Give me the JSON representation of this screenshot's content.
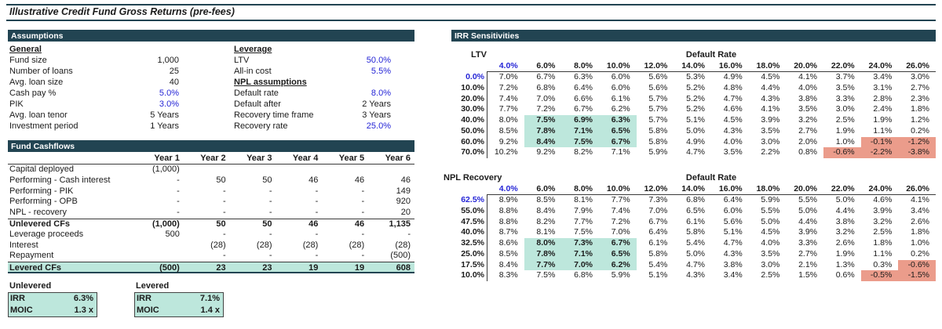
{
  "title": "Illustrative Credit Fund Gross Returns (pre-fees)",
  "colors": {
    "header_bar": "#224452",
    "input_blue": "#2525d6",
    "highlight_teal": "#bde7dc",
    "highlight_salmon": "#eb9c8b"
  },
  "assumptions": {
    "header": "Assumptions",
    "columns": [
      {
        "items": [
          {
            "type": "heading",
            "text": "General"
          },
          {
            "type": "row",
            "label": "Fund size",
            "value": "1,000",
            "input": false
          },
          {
            "type": "row",
            "label": "Number of loans",
            "value": "25",
            "input": false
          },
          {
            "type": "row",
            "label": "Avg. loan size",
            "value": "40",
            "input": false
          },
          {
            "type": "row",
            "label": "Cash pay %",
            "value": "5.0%",
            "input": true
          },
          {
            "type": "row",
            "label": "PIK",
            "value": "3.0%",
            "input": true
          },
          {
            "type": "row",
            "label": "Avg. loan tenor",
            "value": "5 Years",
            "input": false
          },
          {
            "type": "row",
            "label": "Investment period",
            "value": "1 Years",
            "input": false
          }
        ]
      },
      {
        "items": [
          {
            "type": "heading",
            "text": "Leverage"
          },
          {
            "type": "row",
            "label": "LTV",
            "value": "50.0%",
            "input": true
          },
          {
            "type": "row",
            "label": "All-in cost",
            "value": "5.5%",
            "input": true
          },
          {
            "type": "heading",
            "text": "NPL assumptions"
          },
          {
            "type": "row",
            "label": "Default rate",
            "value": "8.0%",
            "input": true
          },
          {
            "type": "row",
            "label": "Default after",
            "value": "2 Years",
            "input": false
          },
          {
            "type": "row",
            "label": "Recovery time frame",
            "value": "3 Years",
            "input": false
          },
          {
            "type": "row",
            "label": "Recovery rate",
            "value": "25.0%",
            "input": true
          }
        ]
      }
    ]
  },
  "cashflows": {
    "header": "Fund Cashflows",
    "columns": [
      "Year 1",
      "Year 2",
      "Year 3",
      "Year 4",
      "Year 5",
      "Year 6"
    ],
    "rows": [
      {
        "label": "Capital deployed",
        "values": [
          "(1,000)",
          "",
          "",
          "",
          "",
          ""
        ],
        "style": ""
      },
      {
        "label": "Performing - Cash interest",
        "values": [
          "-",
          "50",
          "50",
          "46",
          "46",
          "46"
        ],
        "style": ""
      },
      {
        "label": "Performing - PIK",
        "values": [
          "-",
          "-",
          "-",
          "-",
          "-",
          "149"
        ],
        "style": ""
      },
      {
        "label": "Performing - OPB",
        "values": [
          "-",
          "-",
          "-",
          "-",
          "-",
          "920"
        ],
        "style": ""
      },
      {
        "label": "NPL - recovery",
        "values": [
          "-",
          "-",
          "-",
          "-",
          "-",
          "20"
        ],
        "style": ""
      },
      {
        "label": "Unlevered CFs",
        "values": [
          "(1,000)",
          "50",
          "50",
          "46",
          "46",
          "1,135"
        ],
        "style": "subtotal"
      },
      {
        "label": "Leverage proceeds",
        "values": [
          "500",
          "-",
          "-",
          "-",
          "-",
          "-"
        ],
        "style": ""
      },
      {
        "label": "Interest",
        "values": [
          "",
          "(28)",
          "(28)",
          "(28)",
          "(28)",
          "(28)"
        ],
        "style": ""
      },
      {
        "label": "Repayment",
        "values": [
          "",
          "-",
          "-",
          "-",
          "-",
          "(500)"
        ],
        "style": ""
      },
      {
        "label": "Levered CFs",
        "values": [
          "(500)",
          "23",
          "23",
          "19",
          "19",
          "608"
        ],
        "style": "total"
      }
    ]
  },
  "summary": {
    "unlevered": {
      "heading": "Unlevered",
      "rows": [
        {
          "label": "IRR",
          "value": "6.3%"
        },
        {
          "label": "MOIC",
          "value": "1.3 x"
        }
      ]
    },
    "levered": {
      "heading": "Levered",
      "rows": [
        {
          "label": "IRR",
          "value": "7.1%"
        },
        {
          "label": "MOIC",
          "value": "1.4 x"
        }
      ]
    }
  },
  "sensitivities": {
    "header": "IRR Sensitivities",
    "columns": [
      "4.0%",
      "6.0%",
      "8.0%",
      "10.0%",
      "12.0%",
      "14.0%",
      "16.0%",
      "18.0%",
      "20.0%",
      "22.0%",
      "24.0%",
      "26.0%"
    ],
    "tables": [
      {
        "row_label": "LTV",
        "group_label": "Default Rate",
        "row_headers": [
          "0.0%",
          "10.0%",
          "20.0%",
          "30.0%",
          "40.0%",
          "50.0%",
          "60.0%",
          "70.0%"
        ],
        "rows": [
          [
            "7.0%",
            "6.7%",
            "6.3%",
            "6.0%",
            "5.6%",
            "5.3%",
            "4.9%",
            "4.5%",
            "4.1%",
            "3.7%",
            "3.4%",
            "3.0%"
          ],
          [
            "7.2%",
            "6.8%",
            "6.4%",
            "6.0%",
            "5.6%",
            "5.2%",
            "4.8%",
            "4.4%",
            "4.0%",
            "3.5%",
            "3.1%",
            "2.7%"
          ],
          [
            "7.4%",
            "7.0%",
            "6.6%",
            "6.1%",
            "5.7%",
            "5.2%",
            "4.7%",
            "4.3%",
            "3.8%",
            "3.3%",
            "2.8%",
            "2.3%"
          ],
          [
            "7.7%",
            "7.2%",
            "6.7%",
            "6.2%",
            "5.7%",
            "5.2%",
            "4.6%",
            "4.1%",
            "3.5%",
            "3.0%",
            "2.4%",
            "1.8%"
          ],
          [
            "8.0%",
            "7.5%",
            "6.9%",
            "6.3%",
            "5.7%",
            "5.1%",
            "4.5%",
            "3.9%",
            "3.2%",
            "2.5%",
            "1.9%",
            "1.2%"
          ],
          [
            "8.5%",
            "7.8%",
            "7.1%",
            "6.5%",
            "5.8%",
            "5.0%",
            "4.3%",
            "3.5%",
            "2.7%",
            "1.9%",
            "1.1%",
            "0.2%"
          ],
          [
            "9.2%",
            "8.4%",
            "7.5%",
            "6.7%",
            "5.8%",
            "4.9%",
            "4.0%",
            "3.0%",
            "2.0%",
            "1.0%",
            "-0.1%",
            "-1.2%"
          ],
          [
            "10.2%",
            "9.2%",
            "8.2%",
            "7.1%",
            "5.9%",
            "4.7%",
            "3.5%",
            "2.2%",
            "0.8%",
            "-0.6%",
            "-2.2%",
            "-3.8%"
          ]
        ],
        "teal": {
          "rows": [
            4,
            6
          ],
          "cols": [
            1,
            3
          ]
        },
        "salmon": [
          [
            6,
            10
          ],
          [
            6,
            11
          ],
          [
            7,
            9
          ],
          [
            7,
            10
          ],
          [
            7,
            11
          ]
        ]
      },
      {
        "row_label": "NPL Recovery",
        "group_label": "Default Rate",
        "row_headers": [
          "62.5%",
          "55.0%",
          "47.5%",
          "40.0%",
          "32.5%",
          "25.0%",
          "17.5%",
          "10.0%"
        ],
        "rows": [
          [
            "8.9%",
            "8.5%",
            "8.1%",
            "7.7%",
            "7.3%",
            "6.8%",
            "6.4%",
            "5.9%",
            "5.5%",
            "5.0%",
            "4.6%",
            "4.1%"
          ],
          [
            "8.8%",
            "8.4%",
            "7.9%",
            "7.4%",
            "7.0%",
            "6.5%",
            "6.0%",
            "5.5%",
            "5.0%",
            "4.4%",
            "3.9%",
            "3.4%"
          ],
          [
            "8.8%",
            "8.2%",
            "7.7%",
            "7.2%",
            "6.7%",
            "6.1%",
            "5.6%",
            "5.0%",
            "4.4%",
            "3.8%",
            "3.2%",
            "2.6%"
          ],
          [
            "8.7%",
            "8.1%",
            "7.5%",
            "7.0%",
            "6.4%",
            "5.8%",
            "5.1%",
            "4.5%",
            "3.9%",
            "3.2%",
            "2.5%",
            "1.8%"
          ],
          [
            "8.6%",
            "8.0%",
            "7.3%",
            "6.7%",
            "6.1%",
            "5.4%",
            "4.7%",
            "4.0%",
            "3.3%",
            "2.6%",
            "1.8%",
            "1.0%"
          ],
          [
            "8.5%",
            "7.8%",
            "7.1%",
            "6.5%",
            "5.8%",
            "5.0%",
            "4.3%",
            "3.5%",
            "2.7%",
            "1.9%",
            "1.1%",
            "0.2%"
          ],
          [
            "8.4%",
            "7.7%",
            "7.0%",
            "6.2%",
            "5.4%",
            "4.7%",
            "3.8%",
            "3.0%",
            "2.1%",
            "1.3%",
            "0.3%",
            "-0.6%"
          ],
          [
            "8.3%",
            "7.5%",
            "6.8%",
            "5.9%",
            "5.1%",
            "4.3%",
            "3.4%",
            "2.5%",
            "1.5%",
            "0.6%",
            "-0.5%",
            "-1.5%"
          ]
        ],
        "teal": {
          "rows": [
            4,
            6
          ],
          "cols": [
            1,
            3
          ]
        },
        "salmon": [
          [
            6,
            11
          ],
          [
            7,
            10
          ],
          [
            7,
            11
          ]
        ]
      }
    ]
  }
}
